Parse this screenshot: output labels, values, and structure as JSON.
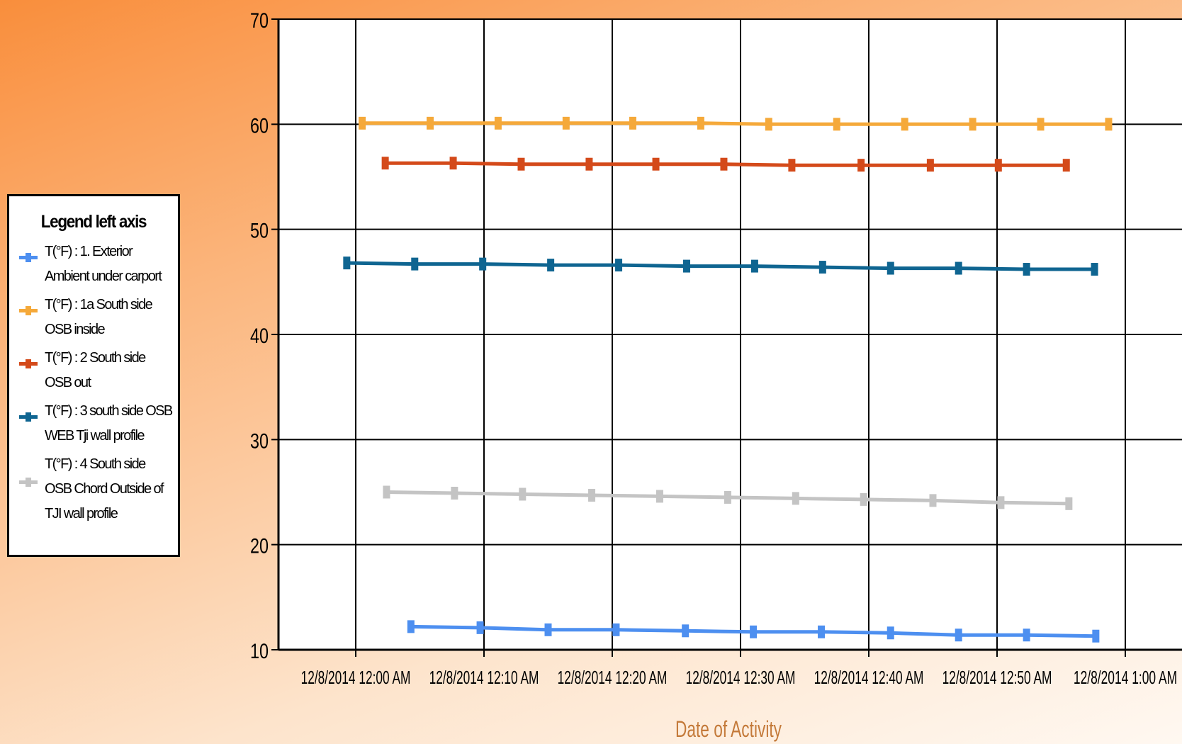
{
  "chart_data": {
    "type": "line",
    "title": "",
    "xlabel": "Date of Activity",
    "ylabel": "",
    "ylim": [
      10,
      70
    ],
    "yticks": [
      10,
      20,
      30,
      40,
      50,
      60,
      70
    ],
    "xlim_minutes": [
      -6,
      60.5
    ],
    "xticks": [
      {
        "label": "12/8/2014 12:00 AM",
        "value": 0
      },
      {
        "label": "12/8/2014 12:10 AM",
        "value": 10
      },
      {
        "label": "12/8/2014 12:20 AM",
        "value": 20
      },
      {
        "label": "12/8/2014 12:30 AM",
        "value": 30
      },
      {
        "label": "12/8/2014 12:40 AM",
        "value": 40
      },
      {
        "label": "12/8/2014 12:50 AM",
        "value": 50
      },
      {
        "label": "12/8/2014 1:00 AM",
        "value": 60
      }
    ],
    "grid": true,
    "legend_title": "Legend left axis",
    "legend_position": "left",
    "series": [
      {
        "name": "T(°F) : 1. Exterior Ambient under carport",
        "color": "#4d8ff0",
        "x": [
          4.3,
          9.7,
          15.0,
          20.3,
          25.7,
          31.0,
          36.3,
          41.7,
          47.0,
          52.3,
          57.7
        ],
        "y": [
          12.2,
          12.1,
          11.9,
          11.9,
          11.8,
          11.7,
          11.7,
          11.6,
          11.4,
          11.4,
          11.3
        ]
      },
      {
        "name": "T(°F) : 1a South side OSB inside",
        "color": "#f5a93a",
        "x": [
          0.5,
          5.8,
          11.1,
          16.4,
          21.6,
          26.9,
          32.2,
          37.5,
          42.8,
          48.1,
          53.4,
          58.7
        ],
        "y": [
          60.1,
          60.1,
          60.1,
          60.1,
          60.1,
          60.1,
          60.0,
          60.0,
          60.0,
          60.0,
          60.0,
          60.0
        ]
      },
      {
        "name": "T(°F) : 2 South side OSB out",
        "color": "#d44a1a",
        "x": [
          2.3,
          7.6,
          12.9,
          18.2,
          23.4,
          28.7,
          34.0,
          39.4,
          44.8,
          50.1,
          55.4
        ],
        "y": [
          56.3,
          56.3,
          56.2,
          56.2,
          56.2,
          56.2,
          56.1,
          56.1,
          56.1,
          56.1,
          56.1
        ]
      },
      {
        "name": "T(°F) : 3 south side OSB WEB Tji wall profile",
        "color": "#0f6591",
        "x": [
          -0.7,
          4.6,
          9.9,
          15.2,
          20.5,
          25.8,
          31.1,
          36.4,
          41.7,
          47.0,
          52.3,
          57.6
        ],
        "y": [
          46.8,
          46.7,
          46.7,
          46.6,
          46.6,
          46.5,
          46.5,
          46.4,
          46.3,
          46.3,
          46.2,
          46.2
        ]
      },
      {
        "name": "T(°F) : 4 South side OSB Chord Outside of TJI wall profile",
        "color": "#c4c4c4",
        "x": [
          2.4,
          7.7,
          13.0,
          18.4,
          23.7,
          29.0,
          34.3,
          39.6,
          45.0,
          50.3,
          55.6
        ],
        "y": [
          25.0,
          24.9,
          24.8,
          24.7,
          24.6,
          24.5,
          24.4,
          24.3,
          24.2,
          24.0,
          23.9
        ]
      }
    ]
  }
}
